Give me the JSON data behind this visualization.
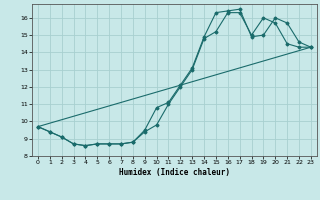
{
  "title": "",
  "xlabel": "Humidex (Indice chaleur)",
  "ylabel": "",
  "background_color": "#c8e8e8",
  "line_color": "#1a6b6b",
  "grid_color": "#a8d0d0",
  "xlim": [
    -0.5,
    23.5
  ],
  "ylim": [
    8,
    16.8
  ],
  "yticks": [
    8,
    9,
    10,
    11,
    12,
    13,
    14,
    15,
    16
  ],
  "xticks": [
    0,
    1,
    2,
    3,
    4,
    5,
    6,
    7,
    8,
    9,
    10,
    11,
    12,
    13,
    14,
    15,
    16,
    17,
    18,
    19,
    20,
    21,
    22,
    23
  ],
  "line1_x": [
    0,
    1,
    2,
    3,
    4,
    5,
    6,
    7,
    8,
    9,
    10,
    11,
    12,
    13,
    14,
    15,
    16,
    17,
    18,
    19,
    20,
    21,
    22,
    23
  ],
  "line1_y": [
    9.7,
    9.4,
    9.1,
    8.7,
    8.6,
    8.7,
    8.7,
    8.7,
    8.8,
    9.4,
    9.8,
    11.0,
    12.0,
    13.0,
    14.8,
    15.2,
    16.3,
    16.3,
    15.0,
    16.0,
    15.7,
    14.5,
    14.3,
    14.3
  ],
  "line2_x": [
    0,
    1,
    2,
    3,
    4,
    5,
    6,
    7,
    8,
    9,
    10,
    11,
    12,
    13,
    14,
    15,
    16,
    17,
    18,
    19,
    20,
    21,
    22,
    23
  ],
  "line2_y": [
    9.7,
    9.4,
    9.1,
    8.7,
    8.6,
    8.7,
    8.7,
    8.7,
    8.8,
    9.5,
    10.8,
    11.1,
    12.1,
    13.1,
    14.9,
    16.3,
    16.4,
    16.5,
    14.9,
    15.0,
    16.0,
    15.7,
    14.6,
    14.3
  ],
  "line3_x": [
    0,
    23
  ],
  "line3_y": [
    9.7,
    14.3
  ]
}
